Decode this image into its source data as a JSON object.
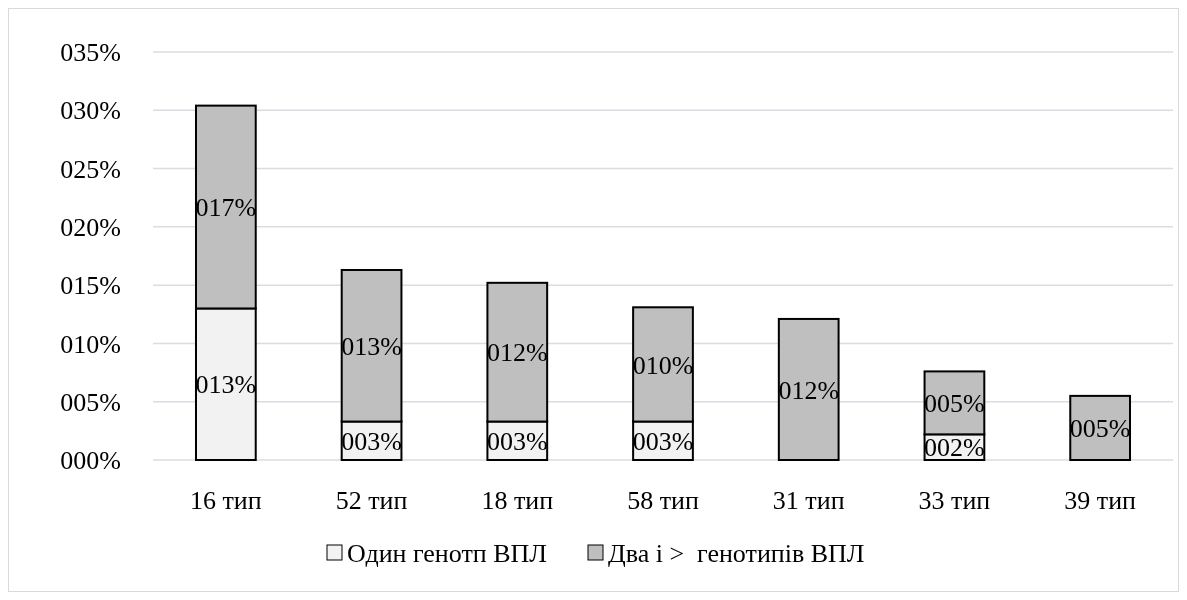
{
  "chart_data": {
    "type": "bar",
    "stacked": true,
    "categories": [
      "16 тип",
      "52 тип",
      "18 тип",
      "58 тип",
      "31 тип",
      "33 тип",
      "39 тип"
    ],
    "series": [
      {
        "name": "Один генотп ВПЛ",
        "color": "#f2f2f2",
        "values": [
          13.0,
          3.3,
          3.3,
          3.3,
          0,
          2.2,
          0
        ],
        "value_labels": [
          "013%",
          "003%",
          "003%",
          "003%",
          null,
          "002%",
          null
        ]
      },
      {
        "name": "Два і >  генотипів ВПЛ",
        "color": "#bfbfbf",
        "values": [
          17.4,
          13.0,
          11.9,
          9.8,
          12.1,
          5.4,
          5.5
        ],
        "value_labels": [
          "017%",
          "013%",
          "012%",
          "010%",
          "012%",
          "005%",
          "005%"
        ]
      }
    ],
    "ylim": [
      0,
      35
    ],
    "yticks": [
      {
        "value": 0,
        "label": "000%"
      },
      {
        "value": 5,
        "label": "005%"
      },
      {
        "value": 10,
        "label": "010%"
      },
      {
        "value": 15,
        "label": "015%"
      },
      {
        "value": 20,
        "label": "020%"
      },
      {
        "value": 25,
        "label": "025%"
      },
      {
        "value": 30,
        "label": "030%"
      },
      {
        "value": 35,
        "label": "035%"
      }
    ],
    "grid": "y",
    "legend": "bottom"
  }
}
